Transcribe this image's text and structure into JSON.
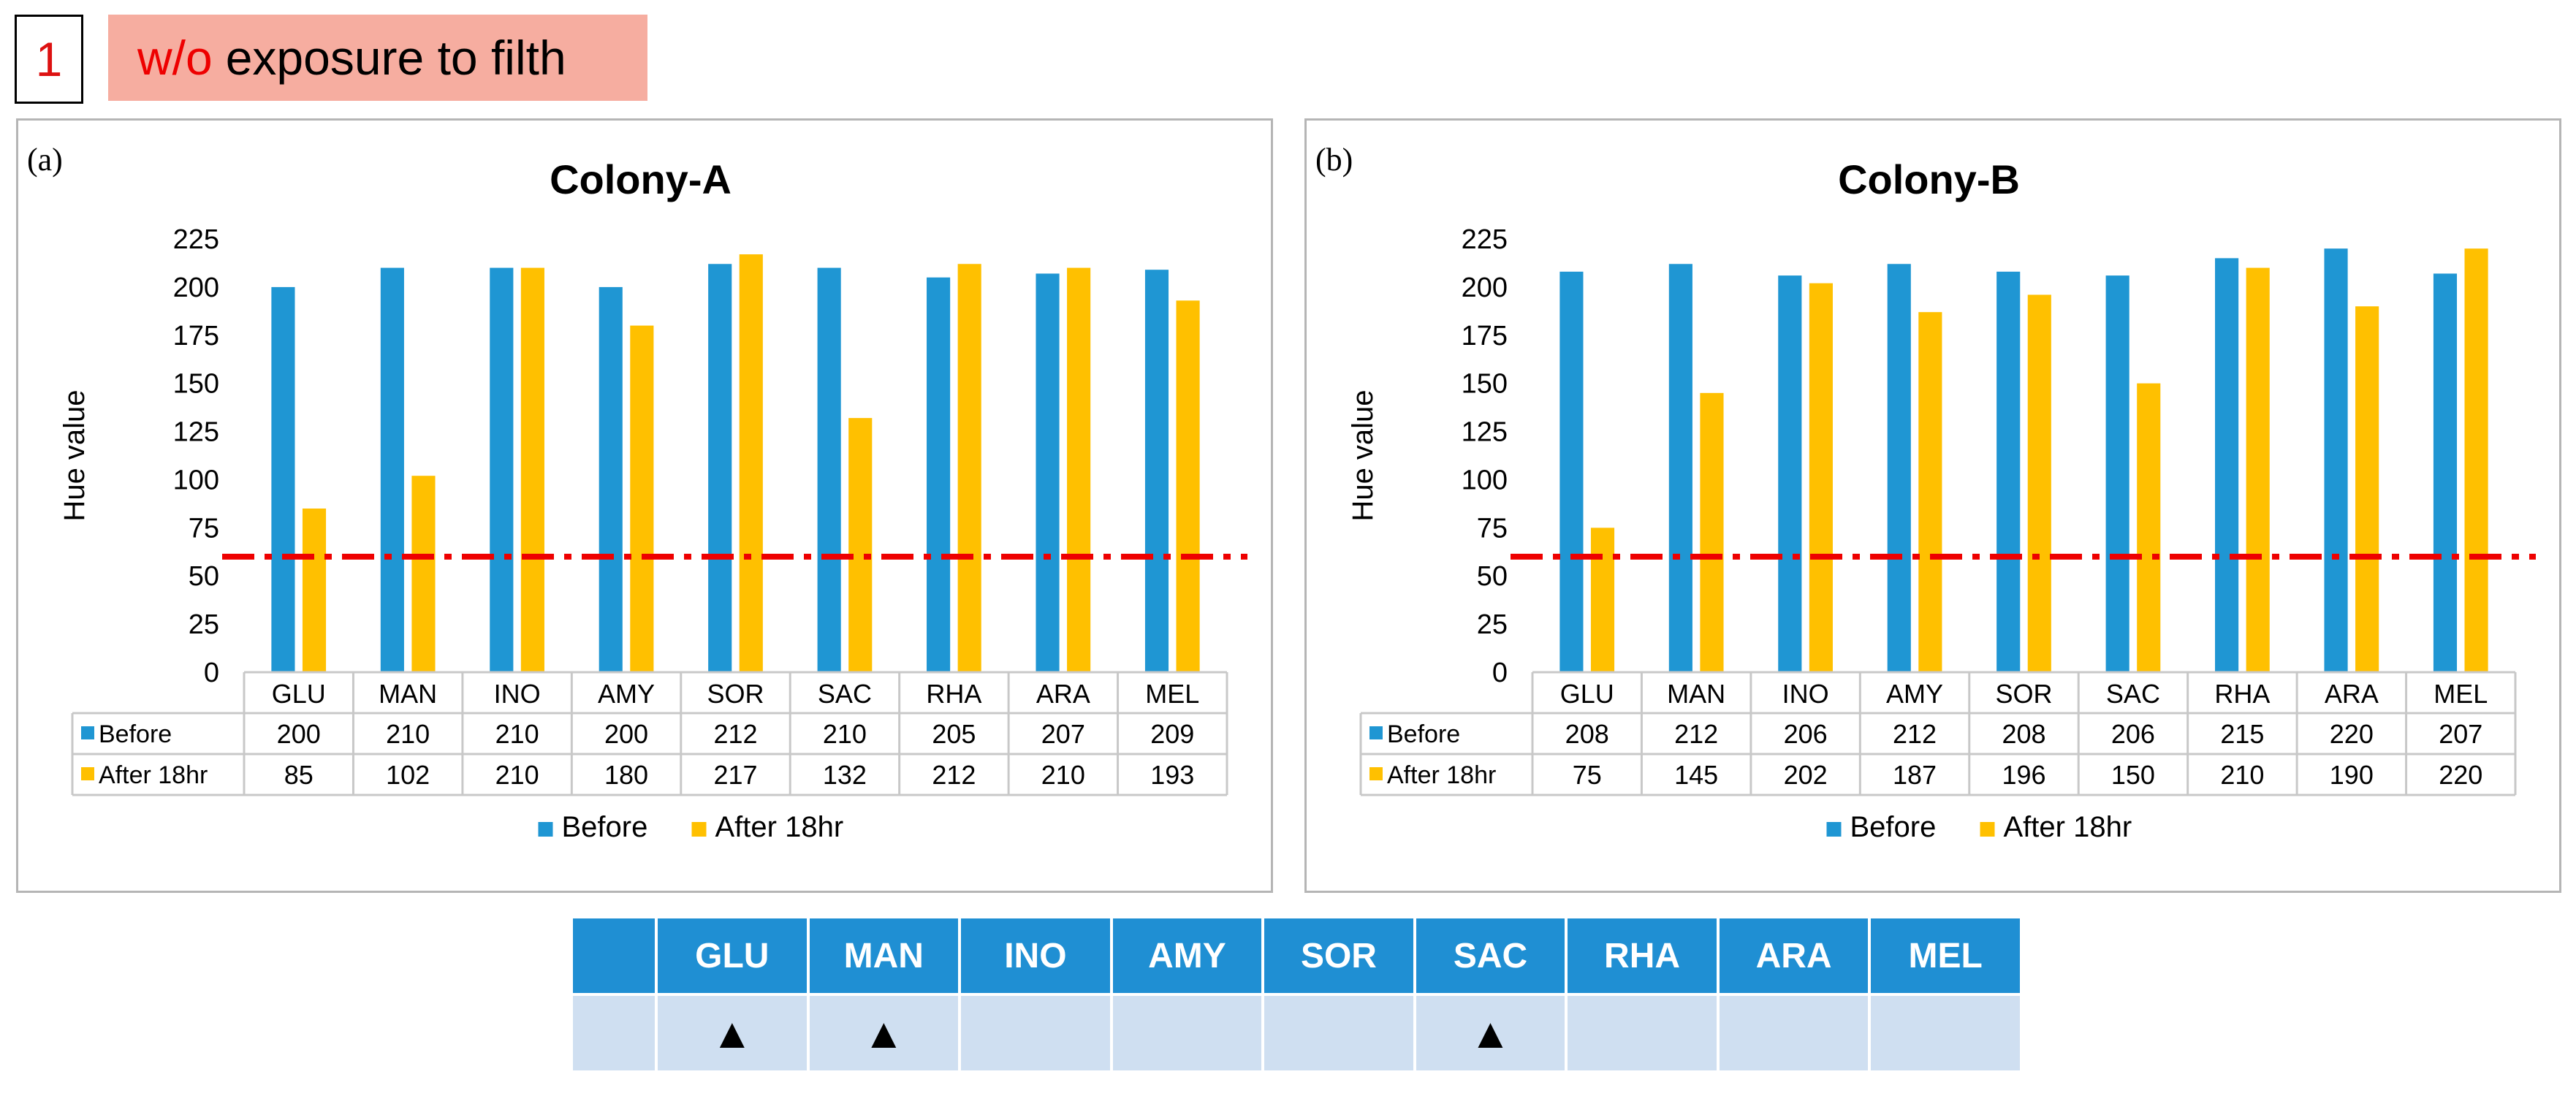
{
  "header": {
    "number": "1",
    "title_red": "w/o",
    "title_rest": "exposure to filth"
  },
  "colors": {
    "before": "#1f96d3",
    "after": "#ffc000",
    "threshold": "#ee0000",
    "table_header": "#1f8fd3",
    "table_row": "#cfdff1"
  },
  "chart_data": [
    {
      "type": "bar",
      "panel_label": "(a)",
      "title": "Colony-A",
      "ylabel": "Hue value",
      "ylim": [
        0,
        225
      ],
      "yticks": [
        "0",
        "25",
        "50",
        "75",
        "100",
        "125",
        "150",
        "175",
        "200",
        "225"
      ],
      "threshold": 60,
      "categories": [
        "GLU",
        "MAN",
        "INO",
        "AMY",
        "SOR",
        "SAC",
        "RHA",
        "ARA",
        "MEL"
      ],
      "series": [
        {
          "name": "Before",
          "values": [
            200,
            210,
            210,
            200,
            212,
            210,
            205,
            207,
            209
          ]
        },
        {
          "name": "After 18hr",
          "values": [
            85,
            102,
            210,
            180,
            217,
            132,
            212,
            210,
            193
          ]
        }
      ]
    },
    {
      "type": "bar",
      "panel_label": "(b)",
      "title": "Colony-B",
      "ylabel": "Hue value",
      "ylim": [
        0,
        225
      ],
      "yticks": [
        "0",
        "25",
        "50",
        "75",
        "100",
        "125",
        "150",
        "175",
        "200",
        "225"
      ],
      "threshold": 60,
      "categories": [
        "GLU",
        "MAN",
        "INO",
        "AMY",
        "SOR",
        "SAC",
        "RHA",
        "ARA",
        "MEL"
      ],
      "series": [
        {
          "name": "Before",
          "values": [
            208,
            212,
            206,
            212,
            208,
            206,
            215,
            220,
            207
          ]
        },
        {
          "name": "After 18hr",
          "values": [
            75,
            145,
            202,
            187,
            196,
            150,
            210,
            190,
            220
          ]
        }
      ]
    }
  ],
  "summary_table": {
    "headers": [
      "",
      "GLU",
      "MAN",
      "INO",
      "AMY",
      "SOR",
      "SAC",
      "RHA",
      "ARA",
      "MEL"
    ],
    "marks": [
      "",
      "▲",
      "▲",
      "",
      "",
      "",
      "▲",
      "",
      "",
      ""
    ]
  }
}
